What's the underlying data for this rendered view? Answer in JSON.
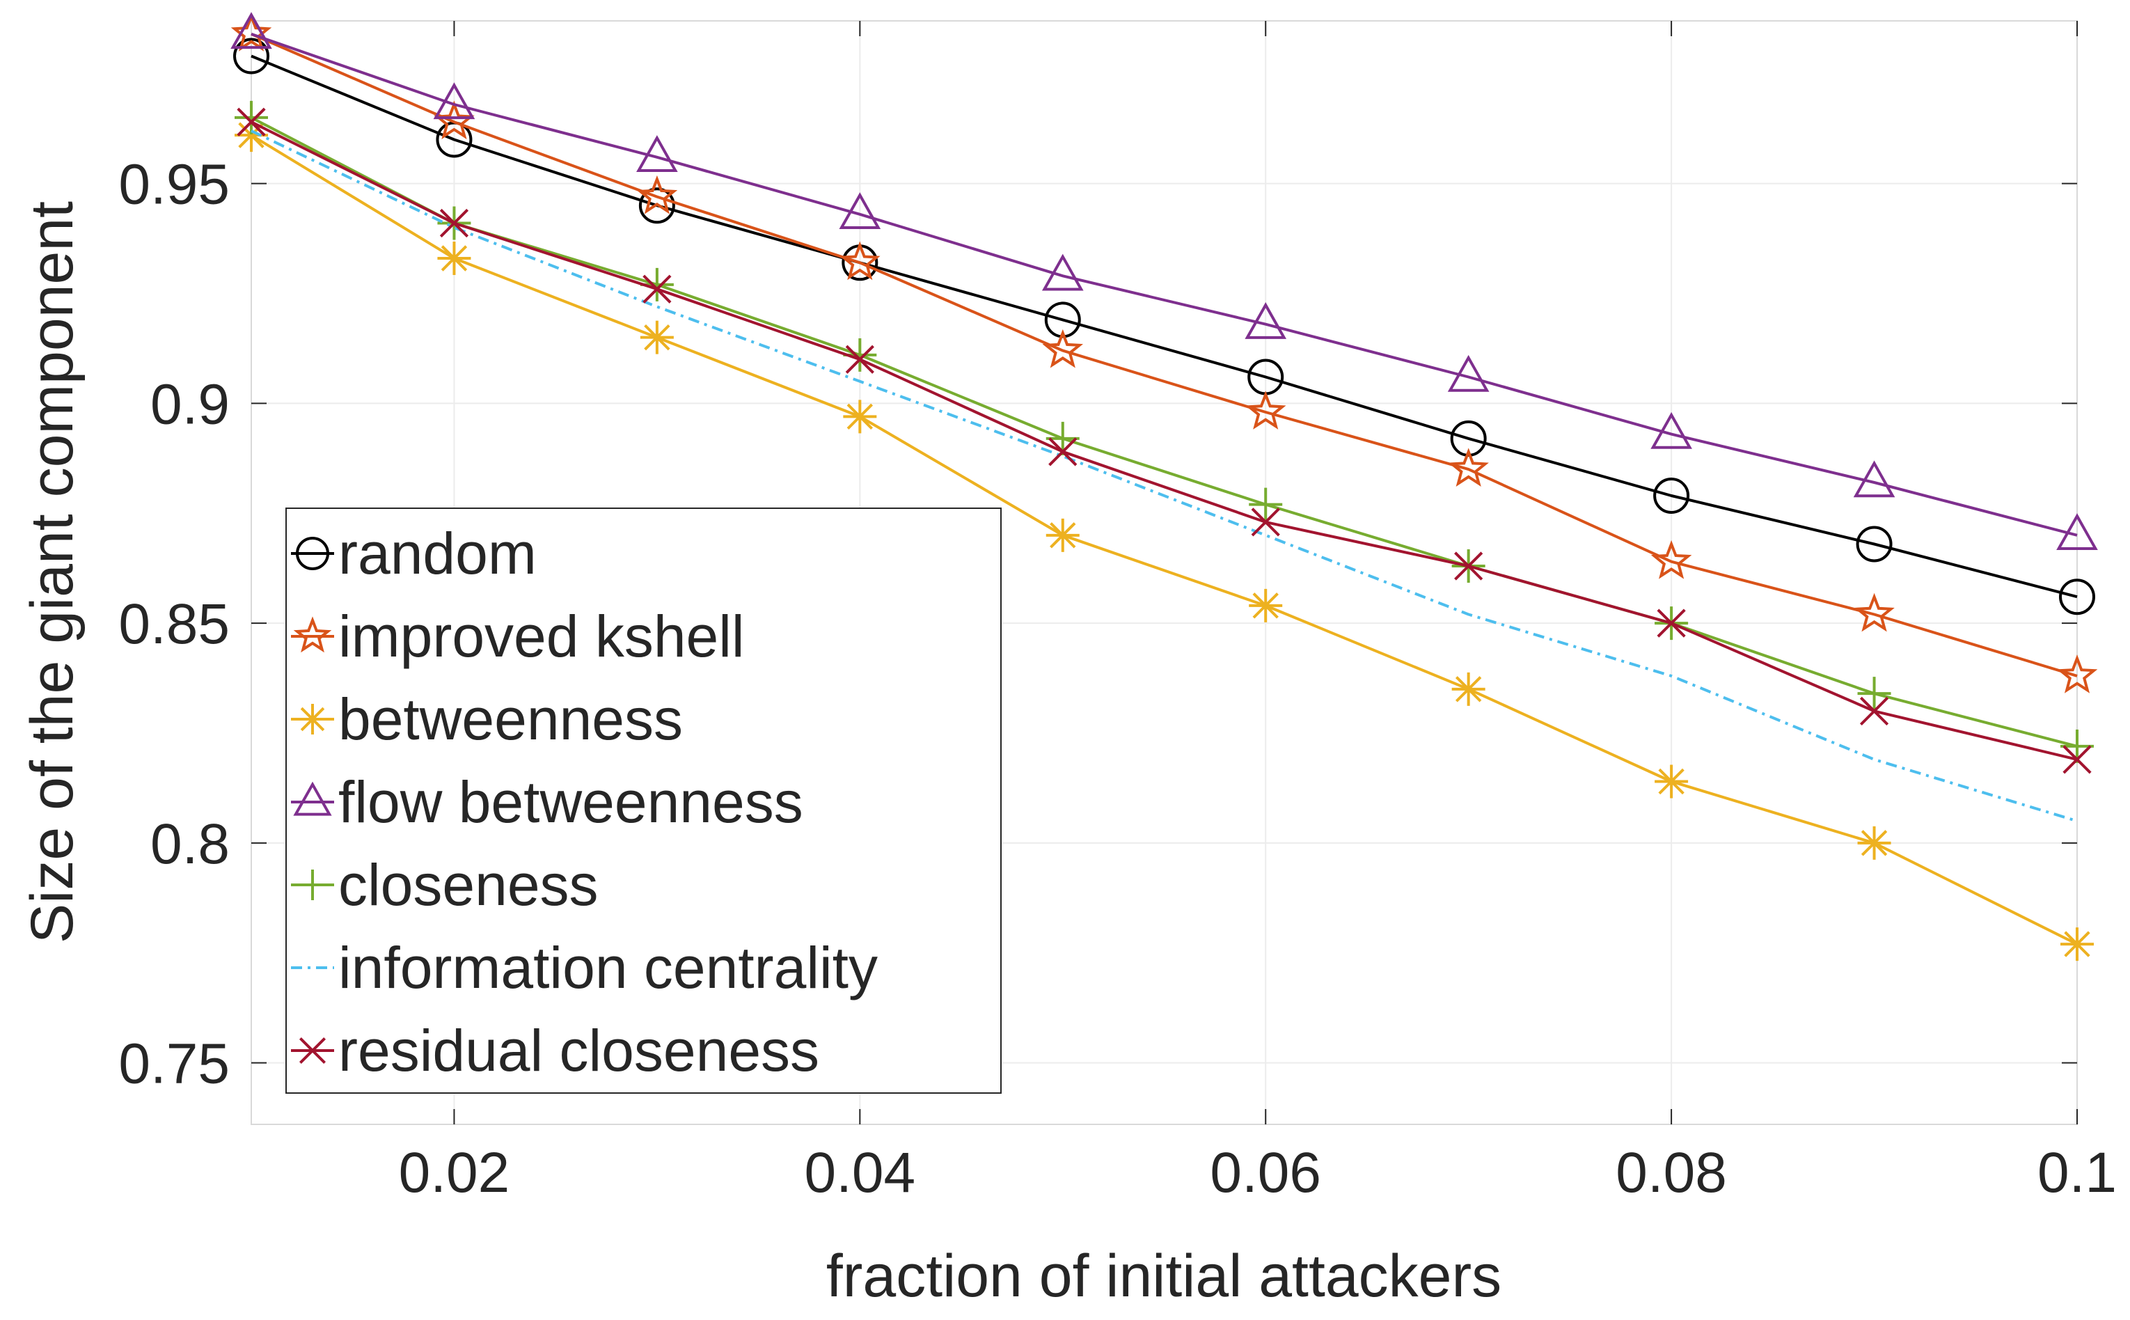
{
  "chart_data": {
    "type": "line",
    "title": "",
    "xlabel": "fraction of initial attackers",
    "ylabel": "Size of the giant component",
    "xlim": [
      0.01,
      0.1
    ],
    "ylim": [
      0.736,
      0.987
    ],
    "x": [
      0.01,
      0.02,
      0.03,
      0.04,
      0.05,
      0.06,
      0.07,
      0.08,
      0.09,
      0.1
    ],
    "xticks": [
      0.02,
      0.04,
      0.06,
      0.08,
      0.1
    ],
    "xtick_labels": [
      "0.02",
      "0.04",
      "0.06",
      "0.08",
      "0.1"
    ],
    "yticks": [
      0.75,
      0.8,
      0.85,
      0.9,
      0.95
    ],
    "ytick_labels": [
      "0.75",
      "0.8",
      "0.85",
      "0.9",
      "0.95"
    ],
    "grid": true,
    "legend_position": "bottom-left",
    "series": [
      {
        "name": "random",
        "color": "#000000",
        "marker": "circle",
        "line": "solid",
        "values": [
          0.979,
          0.96,
          0.945,
          0.932,
          0.919,
          0.906,
          0.892,
          0.879,
          0.868,
          0.856
        ]
      },
      {
        "name": "improved kshell",
        "color": "#D95319",
        "marker": "star",
        "line": "solid",
        "values": [
          0.984,
          0.964,
          0.947,
          0.932,
          0.912,
          0.898,
          0.885,
          0.864,
          0.852,
          0.838
        ]
      },
      {
        "name": "betweenness",
        "color": "#EDB120",
        "marker": "asterisk",
        "line": "solid",
        "values": [
          0.961,
          0.933,
          0.915,
          0.897,
          0.87,
          0.854,
          0.835,
          0.814,
          0.8,
          0.777
        ]
      },
      {
        "name": "flow betweenness",
        "color": "#7E2F8E",
        "marker": "triangle",
        "line": "solid",
        "values": [
          0.984,
          0.968,
          0.956,
          0.943,
          0.929,
          0.918,
          0.906,
          0.893,
          0.882,
          0.87
        ]
      },
      {
        "name": "closeness",
        "color": "#77AC30",
        "marker": "plus",
        "line": "solid",
        "values": [
          0.965,
          0.941,
          0.927,
          0.911,
          0.892,
          0.877,
          0.863,
          0.85,
          0.834,
          0.822
        ]
      },
      {
        "name": "information centrality",
        "color": "#4DBEEE",
        "marker": "none",
        "line": "dashdot",
        "values": [
          0.962,
          0.94,
          0.922,
          0.905,
          0.888,
          0.87,
          0.852,
          0.838,
          0.819,
          0.805
        ]
      },
      {
        "name": "residual closeness",
        "color": "#A2142F",
        "marker": "x",
        "line": "solid",
        "values": [
          0.964,
          0.941,
          0.926,
          0.91,
          0.889,
          0.873,
          0.863,
          0.85,
          0.83,
          0.819
        ]
      }
    ]
  }
}
